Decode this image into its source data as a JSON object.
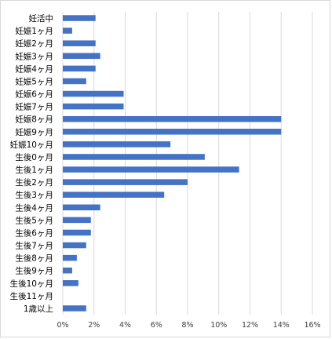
{
  "chart_data": {
    "type": "bar",
    "orientation": "horizontal",
    "categories": [
      "妊活中",
      "妊娠1ヶ月",
      "妊娠2ヶ月",
      "妊娠3ヶ月",
      "妊娠4ヶ月",
      "妊娠5ヶ月",
      "妊娠6ヶ月",
      "妊娠7ヶ月",
      "妊娠8ヶ月",
      "妊娠9ヶ月",
      "妊娠10ヶ月",
      "生後0ヶ月",
      "生後1ヶ月",
      "生後2ヶ月",
      "生後3ヶ月",
      "生後4ヶ月",
      "生後5ヶ月",
      "生後6ヶ月",
      "生後7ヶ月",
      "生後8ヶ月",
      "生後9ヶ月",
      "生後10ヶ月",
      "生後11ヶ月",
      "1歳以上"
    ],
    "values": [
      2.1,
      0.6,
      2.1,
      2.4,
      2.1,
      1.5,
      3.9,
      3.9,
      14.0,
      14.0,
      6.9,
      9.1,
      11.3,
      8.0,
      6.5,
      2.4,
      1.8,
      1.8,
      1.5,
      0.9,
      0.6,
      1.0,
      0.0,
      1.5
    ],
    "x_ticks": [
      "0%",
      "2%",
      "4%",
      "6%",
      "8%",
      "10%",
      "12%",
      "14%",
      "16%"
    ],
    "xlim": [
      0,
      16
    ],
    "grid": true,
    "bar_color": "#4472c4",
    "title": "",
    "xlabel": "",
    "ylabel": ""
  }
}
